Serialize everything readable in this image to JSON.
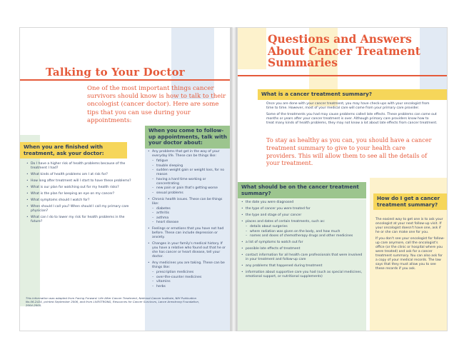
{
  "left": {
    "title": "Talking to Your Doctor",
    "intro": "One of the most important things cancer survivors should know is how to talk to their oncologist (cancer doctor). Here are some tips that you can use during your appointments:",
    "finished": {
      "heading": "When you are finished with treatment, ask your doctor:",
      "items": [
        "Do I have a higher risk of health problems because of the treatment I had?",
        "What kinds of health problems am I at risk for?",
        "How long after treatment will I start to have these problems?",
        "What is our plan for watching out for my health risks?",
        "What is the plan for keeping an eye on my cancer?",
        "What symptoms should I watch for?",
        "When should I call you? When should I call my primary care physician?",
        "What can I do to lower my risk for health problems in the future?"
      ]
    },
    "followup": {
      "heading": "When you come to follow-up appointments, talk with your doctor about:",
      "item1": "Any problems that get in the way of your everyday life. These can be things like:",
      "item1_sub": [
        "fatigue",
        "trouble sleeping",
        "sudden weight gain or weight loss, for no reason",
        "having a hard time working or concentrating",
        "new pain or pain that's getting worse",
        "sexual problems"
      ],
      "item2": "Chronic health issues. These can be things like:",
      "item2_sub": [
        "diabetes",
        "arthritis",
        "asthma",
        "heart disease"
      ],
      "item3": "Feelings or emotions that you have not had before. These can include depression or anxiety.",
      "item4": "Changes in your family's medical history. If you have a relative who found out that he or she has cancer or heart disease, tell your doctor.",
      "item5": "Any medicines you are taking. These can be things like:",
      "item5_sub": [
        "prescription medicines",
        "over-the-counter medicines",
        "vitamins",
        "herbs"
      ]
    },
    "footnote": "This information was adapted from Facing Forward: Life After Cancer Treatment, National Cancer Institute, NIH Publication No.06-2424, printed September 2006, and from LIVESTRONG, Resources for Cancer Survivors, Lance Armstrong Foundation, 2004-2005."
  },
  "right": {
    "title": "Questions and Answers About Cancer Treatment Summaries",
    "what_is": {
      "heading": "What is a cancer treatment summary?",
      "p1": "Once you are done with your cancer treatment, you may have check-ups with your oncologist from time to time. However, most of your medical care will come from your primary care provider.",
      "p2": "Some of the treatments you had may cause problems called late effects. These problems can come out months or years after your cancer treatment is over. Although primary care providers know how to treat many kinds of health problems, they may not know a lot about late effects from cancer treatment."
    },
    "callout": "To stay as healthy as you can, you should have a cancer treatment summary to give to your health care providers. This will allow them to see all the details of your treatment.",
    "what_should": {
      "heading": "What should be on the cancer treatment summary?",
      "items": [
        "the date you were diagnosed",
        "the type of cancer you were treated for",
        "the type and stage of your cancer",
        "places and dates of certain treatments, such as:",
        "a list of symptoms to watch out for",
        "possible late effects of treatment",
        "contact information for all health care professionals that were involved in your treatment and follow-up care",
        "any problems that happened during treatment",
        "information about supportive care you had (such as special medicines, emotional support, or nutritional supplements)"
      ],
      "item4_sub": [
        "details about surgeries",
        "where radiation was given on the body, and how much",
        "names and doses of chemotherapy drugs and other medicines"
      ]
    },
    "how_get": {
      "heading": "How do I get a cancer treatment summary?",
      "p1": "The easiest way to get one is to ask your oncologist at your next follow-up visit. If your oncologist doesn't have one, ask if he or she can make one for you.",
      "p2": "If you don't see your oncologist for follow-up care anymore, call the oncologist's office (or the clinic or hospital where you were treated) and ask for a cancer treatment summary. You can also ask for a copy of your medical records. The law says that they must allow you to see these records if you ask."
    }
  }
}
